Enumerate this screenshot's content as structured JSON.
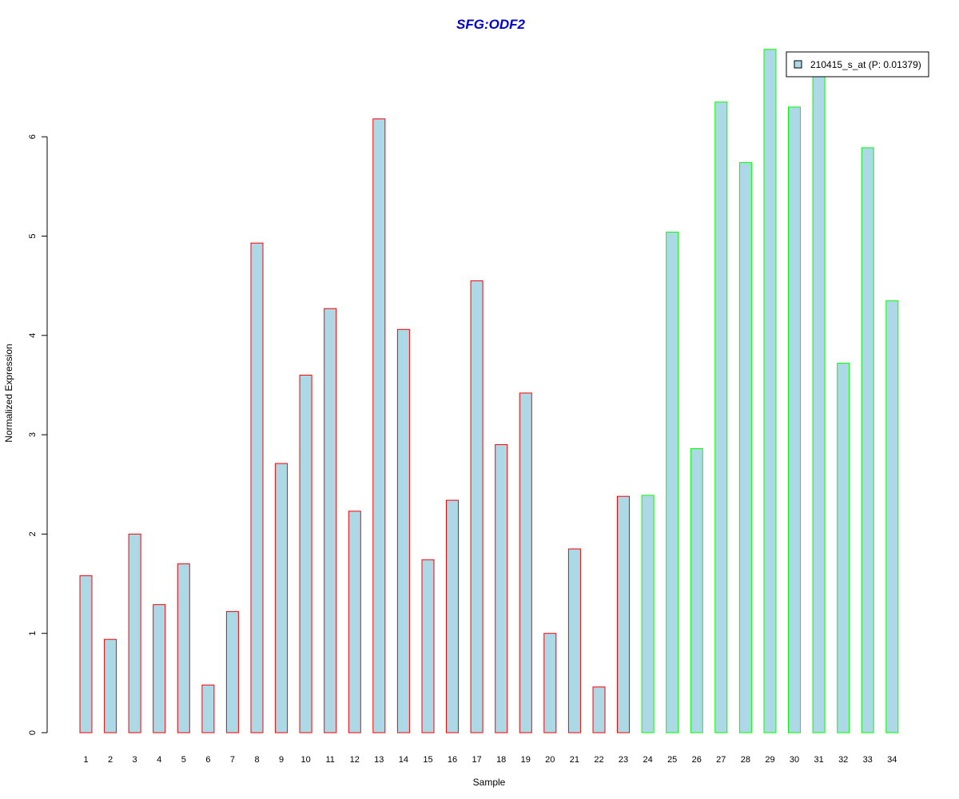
{
  "chart_data": {
    "type": "bar",
    "title": "SFG:ODF2",
    "xlabel": "Sample",
    "ylabel": "Normalized Expression",
    "categories": [
      "1",
      "2",
      "3",
      "4",
      "5",
      "6",
      "7",
      "8",
      "9",
      "10",
      "11",
      "12",
      "13",
      "14",
      "15",
      "16",
      "17",
      "18",
      "19",
      "20",
      "21",
      "22",
      "23",
      "24",
      "25",
      "26",
      "27",
      "28",
      "29",
      "30",
      "31",
      "32",
      "33",
      "34"
    ],
    "series": [
      {
        "name": "210415_s_at (P: 0.01379)",
        "values": [
          1.58,
          0.94,
          2.0,
          1.29,
          1.7,
          0.48,
          1.22,
          4.93,
          2.71,
          3.6,
          4.27,
          2.23,
          6.18,
          4.06,
          1.74,
          2.34,
          4.55,
          2.9,
          3.42,
          1.0,
          1.85,
          0.46,
          2.38,
          2.39,
          5.04,
          2.86,
          6.35,
          5.74,
          6.88,
          6.3,
          6.63,
          3.72,
          5.89,
          4.35
        ]
      }
    ],
    "groups": [
      "red",
      "red",
      "red",
      "red",
      "red",
      "red",
      "red",
      "red",
      "red",
      "red",
      "red",
      "red",
      "red",
      "red",
      "red",
      "red",
      "red",
      "red",
      "red",
      "red",
      "red",
      "red",
      "red",
      "green",
      "green",
      "green",
      "green",
      "green",
      "green",
      "green",
      "green",
      "green",
      "green",
      "green"
    ],
    "yticks": [
      0,
      1,
      2,
      3,
      4,
      5,
      6
    ],
    "ylim": [
      0,
      6.9
    ],
    "grid": false,
    "legend_position": "top-right",
    "colors": {
      "title": "#0000cc",
      "bar_fill": "#add8e6",
      "red": "#ff0000",
      "green": "#00ff00",
      "axis": "#000000"
    }
  }
}
